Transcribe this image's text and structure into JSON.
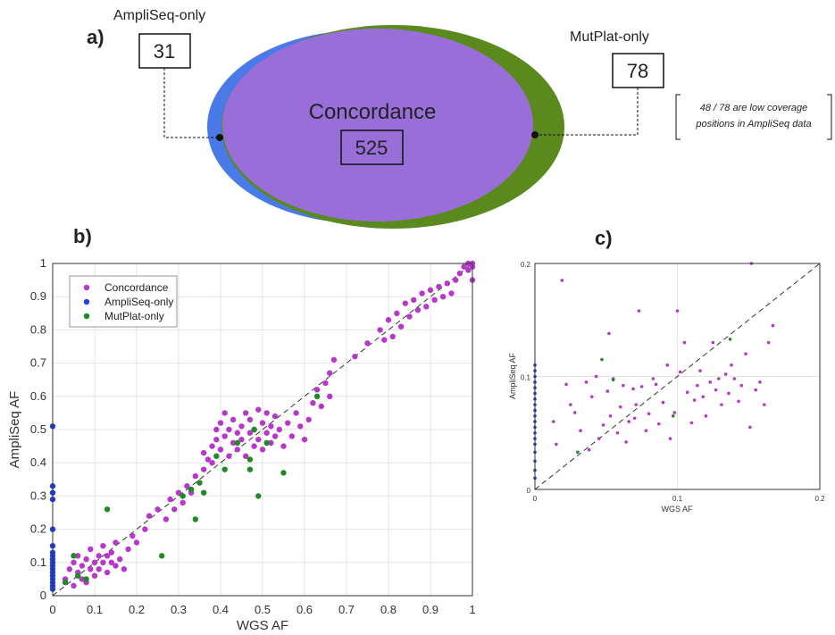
{
  "panel_a": {
    "label": "a)",
    "ampliseq_only": {
      "label": "AmpliSeq-only",
      "count": "31"
    },
    "mutplat_only": {
      "label": "MutPlat-only",
      "count": "78"
    },
    "concordance": {
      "label": "Concordance",
      "count": "525"
    },
    "note_line1": "48 / 78 are low coverage",
    "note_line2": "positions in AmpliSeq data"
  },
  "colors": {
    "concordance": "#b637c9",
    "ampliseq_only": "#1f3fe0",
    "mutplat_only": "#1e8a22",
    "venn_blue": "#4a7ae8",
    "venn_green": "#5a8a1e",
    "venn_purple": "#9a6ed8"
  },
  "chart_data": [
    {
      "id": "b",
      "type": "scatter",
      "panel_label": "b)",
      "xlabel": "WGS AF",
      "ylabel": "AmpliSeq AF",
      "xlim": [
        0,
        1
      ],
      "ylim": [
        0,
        1
      ],
      "xticks": [
        "0",
        "0.1",
        "0.2",
        "0.3",
        "0.4",
        "0.5",
        "0.6",
        "0.7",
        "0.8",
        "0.9",
        "1"
      ],
      "yticks": [
        "0",
        "0.1",
        "0.2",
        "0.3",
        "0.4",
        "0.5",
        "0.6",
        "0.7",
        "0.8",
        "0.9",
        "1"
      ],
      "grid": true,
      "diagonal": true,
      "legend_position": "top-left",
      "series": [
        {
          "name": "Concordance",
          "points": [
            [
              0.03,
              0.05
            ],
            [
              0.04,
              0.08
            ],
            [
              0.05,
              0.03
            ],
            [
              0.05,
              0.1
            ],
            [
              0.06,
              0.07
            ],
            [
              0.06,
              0.12
            ],
            [
              0.07,
              0.05
            ],
            [
              0.07,
              0.09
            ],
            [
              0.08,
              0.04
            ],
            [
              0.08,
              0.11
            ],
            [
              0.09,
              0.08
            ],
            [
              0.09,
              0.14
            ],
            [
              0.1,
              0.06
            ],
            [
              0.1,
              0.1
            ],
            [
              0.11,
              0.12
            ],
            [
              0.11,
              0.08
            ],
            [
              0.12,
              0.1
            ],
            [
              0.12,
              0.15
            ],
            [
              0.13,
              0.07
            ],
            [
              0.13,
              0.12
            ],
            [
              0.14,
              0.1
            ],
            [
              0.14,
              0.13
            ],
            [
              0.15,
              0.09
            ],
            [
              0.15,
              0.16
            ],
            [
              0.16,
              0.11
            ],
            [
              0.17,
              0.08
            ],
            [
              0.18,
              0.14
            ],
            [
              0.19,
              0.18
            ],
            [
              0.2,
              0.16
            ],
            [
              0.22,
              0.2
            ],
            [
              0.23,
              0.24
            ],
            [
              0.25,
              0.26
            ],
            [
              0.27,
              0.23
            ],
            [
              0.28,
              0.29
            ],
            [
              0.29,
              0.26
            ],
            [
              0.3,
              0.31
            ],
            [
              0.31,
              0.28
            ],
            [
              0.32,
              0.33
            ],
            [
              0.33,
              0.31
            ],
            [
              0.34,
              0.36
            ],
            [
              0.35,
              0.34
            ],
            [
              0.36,
              0.38
            ],
            [
              0.36,
              0.43
            ],
            [
              0.37,
              0.41
            ],
            [
              0.38,
              0.45
            ],
            [
              0.38,
              0.4
            ],
            [
              0.39,
              0.47
            ],
            [
              0.39,
              0.5
            ],
            [
              0.4,
              0.44
            ],
            [
              0.4,
              0.52
            ],
            [
              0.41,
              0.48
            ],
            [
              0.41,
              0.55
            ],
            [
              0.42,
              0.42
            ],
            [
              0.42,
              0.5
            ],
            [
              0.43,
              0.46
            ],
            [
              0.43,
              0.53
            ],
            [
              0.44,
              0.49
            ],
            [
              0.44,
              0.44
            ],
            [
              0.45,
              0.51
            ],
            [
              0.45,
              0.47
            ],
            [
              0.46,
              0.55
            ],
            [
              0.46,
              0.42
            ],
            [
              0.47,
              0.49
            ],
            [
              0.47,
              0.53
            ],
            [
              0.48,
              0.45
            ],
            [
              0.48,
              0.5
            ],
            [
              0.49,
              0.56
            ],
            [
              0.49,
              0.47
            ],
            [
              0.5,
              0.52
            ],
            [
              0.5,
              0.44
            ],
            [
              0.51,
              0.49
            ],
            [
              0.51,
              0.55
            ],
            [
              0.52,
              0.46
            ],
            [
              0.52,
              0.51
            ],
            [
              0.53,
              0.48
            ],
            [
              0.53,
              0.54
            ],
            [
              0.54,
              0.5
            ],
            [
              0.55,
              0.45
            ],
            [
              0.56,
              0.52
            ],
            [
              0.57,
              0.48
            ],
            [
              0.58,
              0.55
            ],
            [
              0.59,
              0.51
            ],
            [
              0.6,
              0.47
            ],
            [
              0.61,
              0.53
            ],
            [
              0.62,
              0.58
            ],
            [
              0.63,
              0.62
            ],
            [
              0.64,
              0.57
            ],
            [
              0.65,
              0.64
            ],
            [
              0.66,
              0.67
            ],
            [
              0.66,
              0.6
            ],
            [
              0.67,
              0.71
            ],
            [
              0.72,
              0.72
            ],
            [
              0.75,
              0.76
            ],
            [
              0.78,
              0.8
            ],
            [
              0.79,
              0.77
            ],
            [
              0.8,
              0.83
            ],
            [
              0.81,
              0.78
            ],
            [
              0.82,
              0.85
            ],
            [
              0.83,
              0.81
            ],
            [
              0.84,
              0.88
            ],
            [
              0.85,
              0.84
            ],
            [
              0.86,
              0.89
            ],
            [
              0.87,
              0.86
            ],
            [
              0.88,
              0.91
            ],
            [
              0.89,
              0.87
            ],
            [
              0.9,
              0.92
            ],
            [
              0.91,
              0.89
            ],
            [
              0.92,
              0.93
            ],
            [
              0.93,
              0.9
            ],
            [
              0.94,
              0.94
            ],
            [
              0.95,
              0.91
            ],
            [
              0.96,
              0.95
            ],
            [
              0.97,
              0.97
            ],
            [
              0.98,
              0.99
            ],
            [
              0.99,
              1.0
            ],
            [
              1.0,
              1.0
            ],
            [
              1.0,
              0.99
            ],
            [
              0.99,
              0.98
            ],
            [
              1.0,
              0.95
            ]
          ]
        },
        {
          "name": "AmpliSeq-only",
          "points": [
            [
              0,
              0.51
            ],
            [
              0,
              0.33
            ],
            [
              0,
              0.31
            ],
            [
              0,
              0.29
            ],
            [
              0,
              0.2
            ],
            [
              0,
              0.15
            ],
            [
              0,
              0.13
            ],
            [
              0,
              0.12
            ],
            [
              0,
              0.11
            ],
            [
              0,
              0.1
            ],
            [
              0,
              0.09
            ],
            [
              0,
              0.08
            ],
            [
              0,
              0.07
            ],
            [
              0,
              0.06
            ],
            [
              0,
              0.05
            ],
            [
              0,
              0.04
            ],
            [
              0,
              0.03
            ],
            [
              0,
              0.02
            ]
          ]
        },
        {
          "name": "MutPlat-only",
          "points": [
            [
              0.03,
              0.04
            ],
            [
              0.05,
              0.12
            ],
            [
              0.06,
              0.06
            ],
            [
              0.08,
              0.05
            ],
            [
              0.13,
              0.26
            ],
            [
              0.26,
              0.12
            ],
            [
              0.31,
              0.3
            ],
            [
              0.33,
              0.32
            ],
            [
              0.34,
              0.23
            ],
            [
              0.35,
              0.34
            ],
            [
              0.36,
              0.31
            ],
            [
              0.39,
              0.42
            ],
            [
              0.41,
              0.38
            ],
            [
              0.44,
              0.46
            ],
            [
              0.47,
              0.38
            ],
            [
              0.47,
              0.41
            ],
            [
              0.48,
              0.5
            ],
            [
              0.49,
              0.3
            ],
            [
              0.51,
              0.46
            ],
            [
              0.55,
              0.37
            ],
            [
              0.63,
              0.6
            ]
          ]
        }
      ]
    },
    {
      "id": "c",
      "type": "scatter",
      "panel_label": "c)",
      "xlabel": "WGS AF",
      "ylabel": "AmpliSeq AF",
      "xlim": [
        0,
        0.2
      ],
      "ylim": [
        0,
        0.2
      ],
      "xticks": [
        "0",
        "0.1",
        "0.2"
      ],
      "yticks": [
        "0",
        "0.1",
        "0.2"
      ],
      "grid": true,
      "diagonal": true,
      "series": [
        {
          "name": "Concordance",
          "points": [
            [
              0.019,
              0.185
            ],
            [
              0.013,
              0.06
            ],
            [
              0.015,
              0.04
            ],
            [
              0.022,
              0.093
            ],
            [
              0.025,
              0.075
            ],
            [
              0.028,
              0.068
            ],
            [
              0.032,
              0.052
            ],
            [
              0.036,
              0.095
            ],
            [
              0.04,
              0.082
            ],
            [
              0.043,
              0.1
            ],
            [
              0.045,
              0.045
            ],
            [
              0.048,
              0.057
            ],
            [
              0.051,
              0.087
            ],
            [
              0.053,
              0.065
            ],
            [
              0.055,
              0.098
            ],
            [
              0.058,
              0.05
            ],
            [
              0.06,
              0.073
            ],
            [
              0.062,
              0.092
            ],
            [
              0.064,
              0.042
            ],
            [
              0.066,
              0.06
            ],
            [
              0.069,
              0.089
            ],
            [
              0.071,
              0.075
            ],
            [
              0.073,
              0.158
            ],
            [
              0.075,
              0.091
            ],
            [
              0.078,
              0.052
            ],
            [
              0.08,
              0.067
            ],
            [
              0.083,
              0.098
            ],
            [
              0.085,
              0.093
            ],
            [
              0.087,
              0.058
            ],
            [
              0.09,
              0.077
            ],
            [
              0.093,
              0.11
            ],
            [
              0.095,
              0.045
            ],
            [
              0.098,
              0.068
            ],
            [
              0.1,
              0.158
            ],
            [
              0.102,
              0.104
            ],
            [
              0.105,
              0.13
            ],
            [
              0.107,
              0.086
            ],
            [
              0.11,
              0.059
            ],
            [
              0.112,
              0.079
            ],
            [
              0.114,
              0.092
            ],
            [
              0.116,
              0.105
            ],
            [
              0.118,
              0.082
            ],
            [
              0.12,
              0.065
            ],
            [
              0.123,
              0.095
            ],
            [
              0.125,
              0.13
            ],
            [
              0.127,
              0.088
            ],
            [
              0.129,
              0.098
            ],
            [
              0.131,
              0.075
            ],
            [
              0.134,
              0.102
            ],
            [
              0.136,
              0.085
            ],
            [
              0.138,
              0.11
            ],
            [
              0.14,
              0.098
            ],
            [
              0.143,
              0.078
            ],
            [
              0.145,
              0.092
            ],
            [
              0.148,
              0.12
            ],
            [
              0.151,
              0.055
            ],
            [
              0.152,
              0.2
            ],
            [
              0.155,
              0.088
            ],
            [
              0.158,
              0.095
            ],
            [
              0.161,
              0.075
            ],
            [
              0.164,
              0.13
            ],
            [
              0.167,
              0.145
            ],
            [
              0.052,
              0.138
            ],
            [
              0.038,
              0.035
            ],
            [
              0.07,
              0.063
            ]
          ]
        },
        {
          "name": "AmpliSeq-only",
          "points": [
            [
              0,
              0.11
            ],
            [
              0,
              0.105
            ],
            [
              0,
              0.1
            ],
            [
              0,
              0.095
            ],
            [
              0,
              0.09
            ],
            [
              0,
              0.085
            ],
            [
              0,
              0.08
            ],
            [
              0,
              0.075
            ],
            [
              0,
              0.07
            ],
            [
              0,
              0.065
            ],
            [
              0,
              0.06
            ],
            [
              0,
              0.055
            ],
            [
              0,
              0.05
            ],
            [
              0,
              0.045
            ],
            [
              0,
              0.04
            ],
            [
              0,
              0.033
            ],
            [
              0,
              0.025
            ],
            [
              0,
              0.017
            ],
            [
              0,
              0.01
            ]
          ]
        },
        {
          "name": "MutPlat-only",
          "points": [
            [
              0.03,
              0.033
            ],
            [
              0.047,
              0.115
            ],
            [
              0.055,
              0.097
            ],
            [
              0.097,
              0.065
            ],
            [
              0.137,
              0.133
            ]
          ]
        }
      ]
    }
  ]
}
